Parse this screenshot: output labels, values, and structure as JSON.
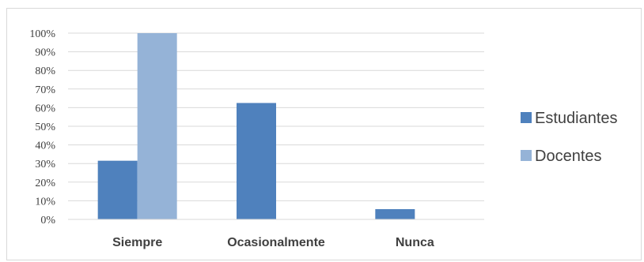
{
  "chart_data": {
    "type": "bar",
    "categories": [
      "Siempre",
      "Ocasionalmente",
      "Nunca"
    ],
    "series": [
      {
        "name": "Estudiantes",
        "values": [
          31.5,
          62.5,
          5.5
        ],
        "color": "#4f81bd"
      },
      {
        "name": "Docentes",
        "values": [
          100,
          0,
          0
        ],
        "color": "#95b3d7"
      }
    ],
    "ylim": [
      0,
      100
    ],
    "yticks": [
      0,
      10,
      20,
      30,
      40,
      50,
      60,
      70,
      80,
      90,
      100
    ],
    "ytick_labels": [
      "0%",
      "10%",
      "20%",
      "30%",
      "40%",
      "50%",
      "60%",
      "70%",
      "80%",
      "90%",
      "100%"
    ],
    "grid": true,
    "legend_position": "right",
    "gridline_color": "#d9d9d9"
  }
}
